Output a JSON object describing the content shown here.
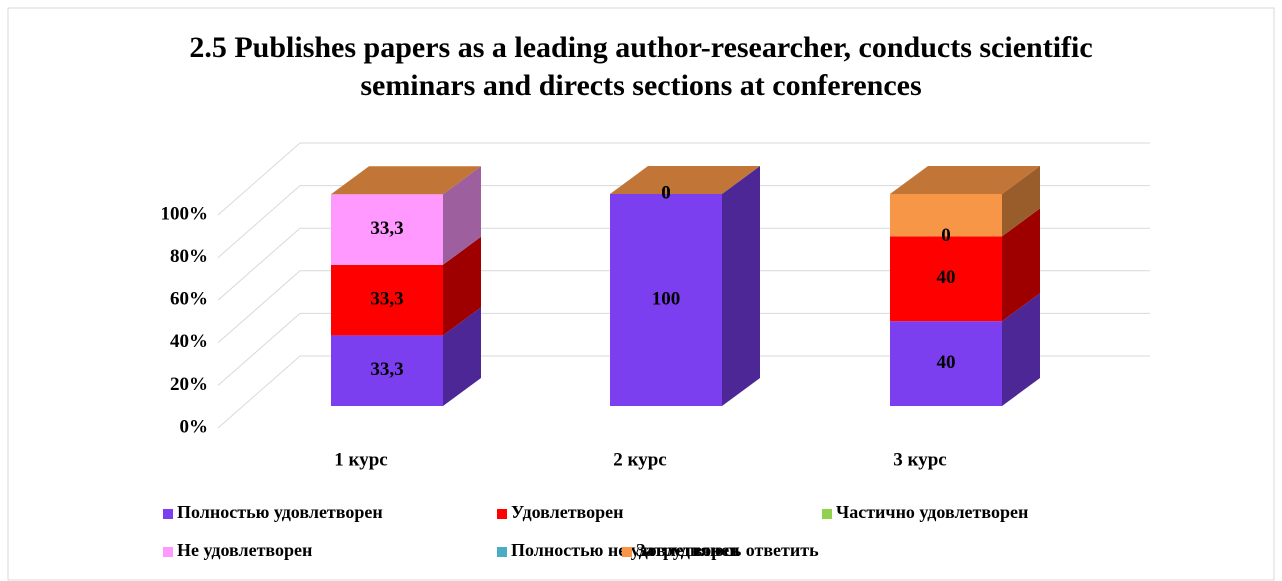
{
  "chart_data": {
    "type": "bar3d_stacked",
    "title": [
      "2.5 Publishes papers as a leading author-researcher, conducts scientific",
      "seminars and directs sections at conferences"
    ],
    "categories": [
      "1 курс",
      "2 курс",
      "3 курс"
    ],
    "series": [
      {
        "name": "Полностью удовлетворен",
        "color": "#7b3ff0",
        "values": [
          33.3,
          100,
          40
        ],
        "value_labels": [
          "33,3",
          "100",
          "40"
        ]
      },
      {
        "name": "Удовлетворен",
        "color": "#ff0000",
        "values": [
          33.3,
          0,
          40
        ],
        "value_labels": [
          "33,3",
          "0",
          "40"
        ]
      },
      {
        "name": "Частично удовлетворен",
        "color": "#92d050",
        "values": [
          0,
          0,
          0
        ]
      },
      {
        "name": "Не удовлетворен",
        "color": "#ff99ff",
        "values": [
          33.3,
          0,
          0
        ],
        "value_labels": [
          "33,3",
          "0",
          "0"
        ]
      },
      {
        "name": "Полностью не удовлетворен",
        "color": "#4bacc6",
        "values": [
          0,
          0,
          0
        ]
      },
      {
        "name": "Затрудняюсь ответить",
        "color": "#f79646",
        "values": [
          0,
          0,
          20
        ]
      }
    ],
    "ylim": [
      0,
      100
    ],
    "yticks": [
      {
        "value": 0,
        "label": "0%"
      },
      {
        "value": 20,
        "label": "20%"
      },
      {
        "value": 40,
        "label": "40%"
      },
      {
        "value": 60,
        "label": "60%"
      },
      {
        "value": 80,
        "label": "80%"
      },
      {
        "value": 100,
        "label": "100%"
      }
    ],
    "grid": true
  }
}
